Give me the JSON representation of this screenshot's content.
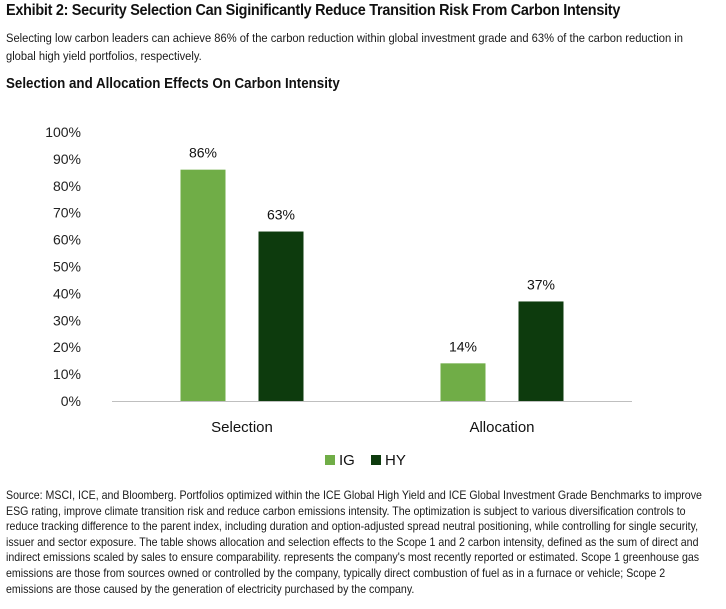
{
  "header": {
    "exhibit_title": "Exhibit 2: Security Selection Can Siginificantly Reduce Transition Risk From Carbon Intensity",
    "subtitle": "Selecting low carbon leaders can achieve 86% of the carbon reduction within global investment grade and 63% of the carbon reduction in global high yield portfolios, respectively."
  },
  "chart_data": {
    "type": "bar",
    "title": "Selection and Allocation Effects On Carbon Intensity",
    "xlabel": "",
    "ylabel": "",
    "categories": [
      "Selection",
      "Allocation"
    ],
    "series": [
      {
        "name": "IG",
        "values": [
          86,
          14
        ],
        "labels": [
          "86%",
          "14%"
        ],
        "color": "#70ad47"
      },
      {
        "name": "HY",
        "values": [
          63,
          37
        ],
        "labels": [
          "63%",
          "37%"
        ],
        "color": "#0d3b0d"
      }
    ],
    "ylim": [
      0,
      100
    ],
    "yticks": [
      "0%",
      "10%",
      "20%",
      "30%",
      "40%",
      "50%",
      "60%",
      "70%",
      "80%",
      "90%",
      "100%"
    ],
    "grid": false,
    "legend": "bottom-center"
  },
  "footer": {
    "source": "Source: MSCI, ICE, and Bloomberg. Portfolios optimized within the ICE Global High Yield and ICE Global Investment Grade Benchmarks to improve ESG rating, improve climate transition risk and reduce carbon emissions intensity. The optimization is subject to various diversification controls to reduce tracking difference to the parent index, including duration and option-adjusted spread neutral positioning, while controlling for single security, issuer and sector exposure. The table shows allocation and selection effects to the Scope 1 and 2 carbon intensity, defined as the sum of direct and indirect emissions scaled by sales to ensure comparability. represents the company's most recently reported or estimated. Scope 1 greenhouse gas emissions are those from sources owned or controlled by the company, typically direct combustion of fuel as in a furnace or vehicle; Scope 2 emissions are those caused by the generation of electricity purchased by the company."
  }
}
